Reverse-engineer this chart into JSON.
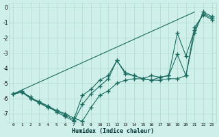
{
  "xlabel": "Humidex (Indice chaleur)",
  "background_color": "#cff0ea",
  "grid_color": "#b0d8d0",
  "line_color": "#1a6b60",
  "xlim": [
    -0.5,
    23.5
  ],
  "ylim": [
    -7.6,
    0.3
  ],
  "yticks": [
    0,
    -1,
    -2,
    -3,
    -4,
    -5,
    -6,
    -7
  ],
  "xticks": [
    0,
    1,
    2,
    3,
    4,
    5,
    6,
    7,
    8,
    9,
    10,
    11,
    12,
    13,
    14,
    15,
    16,
    17,
    18,
    19,
    20,
    21,
    22,
    23
  ],
  "line1_x": [
    0,
    1,
    2,
    3,
    4,
    5,
    6,
    7,
    8,
    9,
    10,
    11,
    12,
    13,
    14,
    15,
    16,
    17,
    18,
    19,
    20,
    21,
    22,
    23
  ],
  "line1_y": [
    -5.7,
    -5.6,
    -5.9,
    -6.3,
    -6.6,
    -6.8,
    -7.0,
    -7.3,
    -7.5,
    -6.6,
    -5.8,
    -5.5,
    -5.0,
    -4.8,
    -4.7,
    -4.7,
    -4.8,
    -4.8,
    -4.7,
    -4.7,
    -4.5,
    -1.3,
    -0.5,
    -0.8
  ],
  "line2_x": [
    0,
    1,
    2,
    3,
    4,
    5,
    6,
    7,
    8,
    9,
    10,
    11,
    12,
    13,
    14,
    15,
    16,
    17,
    18,
    19,
    20,
    21,
    22,
    23
  ],
  "line2_y": [
    -5.7,
    -5.5,
    -6.0,
    -6.3,
    -6.5,
    -6.9,
    -7.2,
    -7.5,
    -6.4,
    -5.7,
    -5.2,
    -4.7,
    -3.5,
    -4.4,
    -4.5,
    -4.7,
    -4.5,
    -4.6,
    -4.5,
    -3.1,
    -4.5,
    -1.7,
    -0.3,
    -0.6
  ],
  "line3_x": [
    0,
    1,
    2,
    3,
    4,
    5,
    6,
    7,
    8,
    9,
    10,
    11,
    12,
    13,
    14,
    15,
    16,
    17,
    18,
    19,
    20,
    21,
    22,
    23
  ],
  "line3_y": [
    -5.7,
    -5.6,
    -6.0,
    -6.2,
    -6.5,
    -6.8,
    -7.1,
    -7.4,
    -5.8,
    -5.4,
    -4.8,
    -4.5,
    -3.5,
    -4.3,
    -4.5,
    -4.7,
    -4.8,
    -4.6,
    -4.5,
    -1.7,
    -3.2,
    -1.5,
    -0.4,
    -0.7
  ],
  "line4_x": [
    0,
    21
  ],
  "line4_y": [
    -5.7,
    -0.3
  ]
}
